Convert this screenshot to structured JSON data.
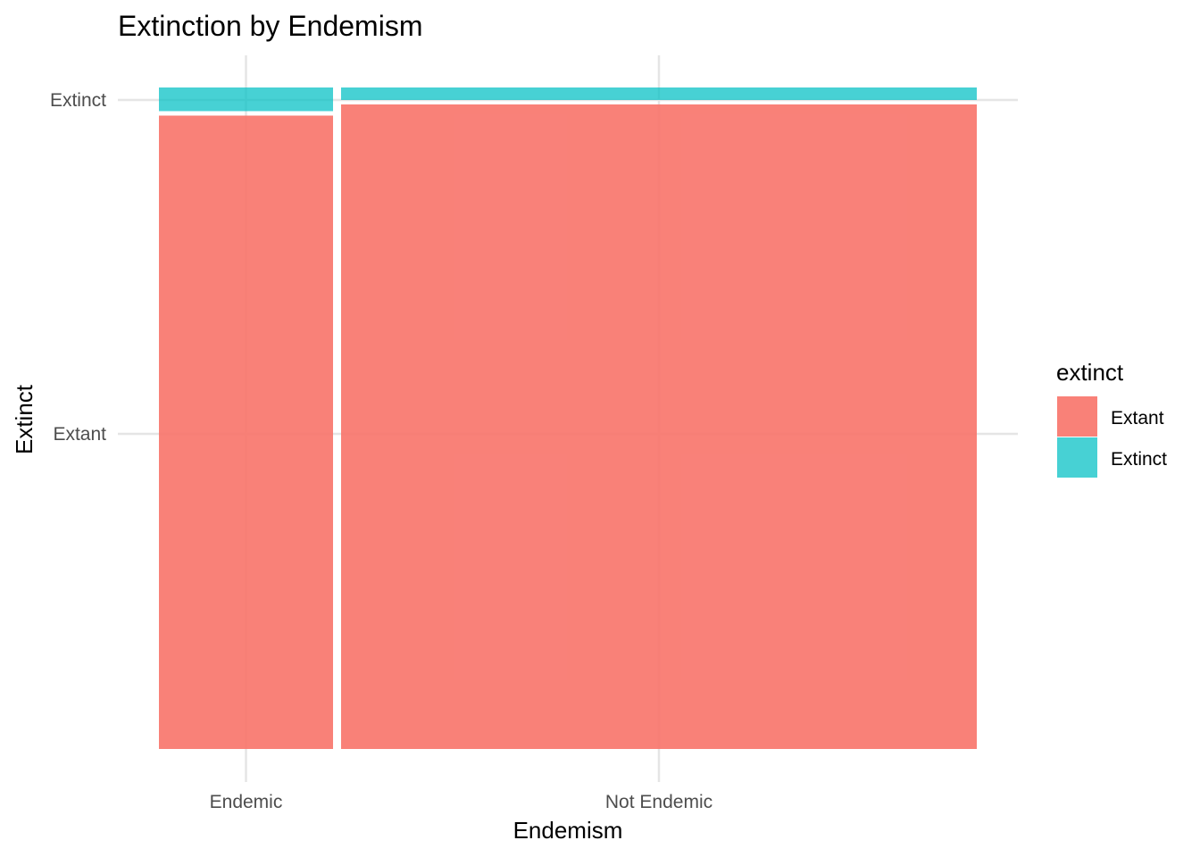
{
  "colors": {
    "Extant": "#F8766D",
    "Extinct": "#00BFC4",
    "grid": "#e5e5e5"
  },
  "chart_data": {
    "type": "mosaic",
    "title": "Extinction by Endemism",
    "xlabel": "Endemism",
    "ylabel": "Extinct",
    "x_tick_labels": [
      "Endemic",
      "Not Endemic"
    ],
    "y_tick_labels": [
      "Extant",
      "Extinct"
    ],
    "categories": [
      "Endemic",
      "Not Endemic"
    ],
    "column_share": [
      0.215,
      0.785
    ],
    "series": [
      {
        "name": "Extant",
        "values": [
          0.964,
          0.981
        ]
      },
      {
        "name": "Extinct",
        "values": [
          0.036,
          0.019
        ]
      }
    ],
    "legend": {
      "title": "extinct",
      "position": "right",
      "items": [
        "Extant",
        "Extinct"
      ]
    },
    "grid": true
  }
}
